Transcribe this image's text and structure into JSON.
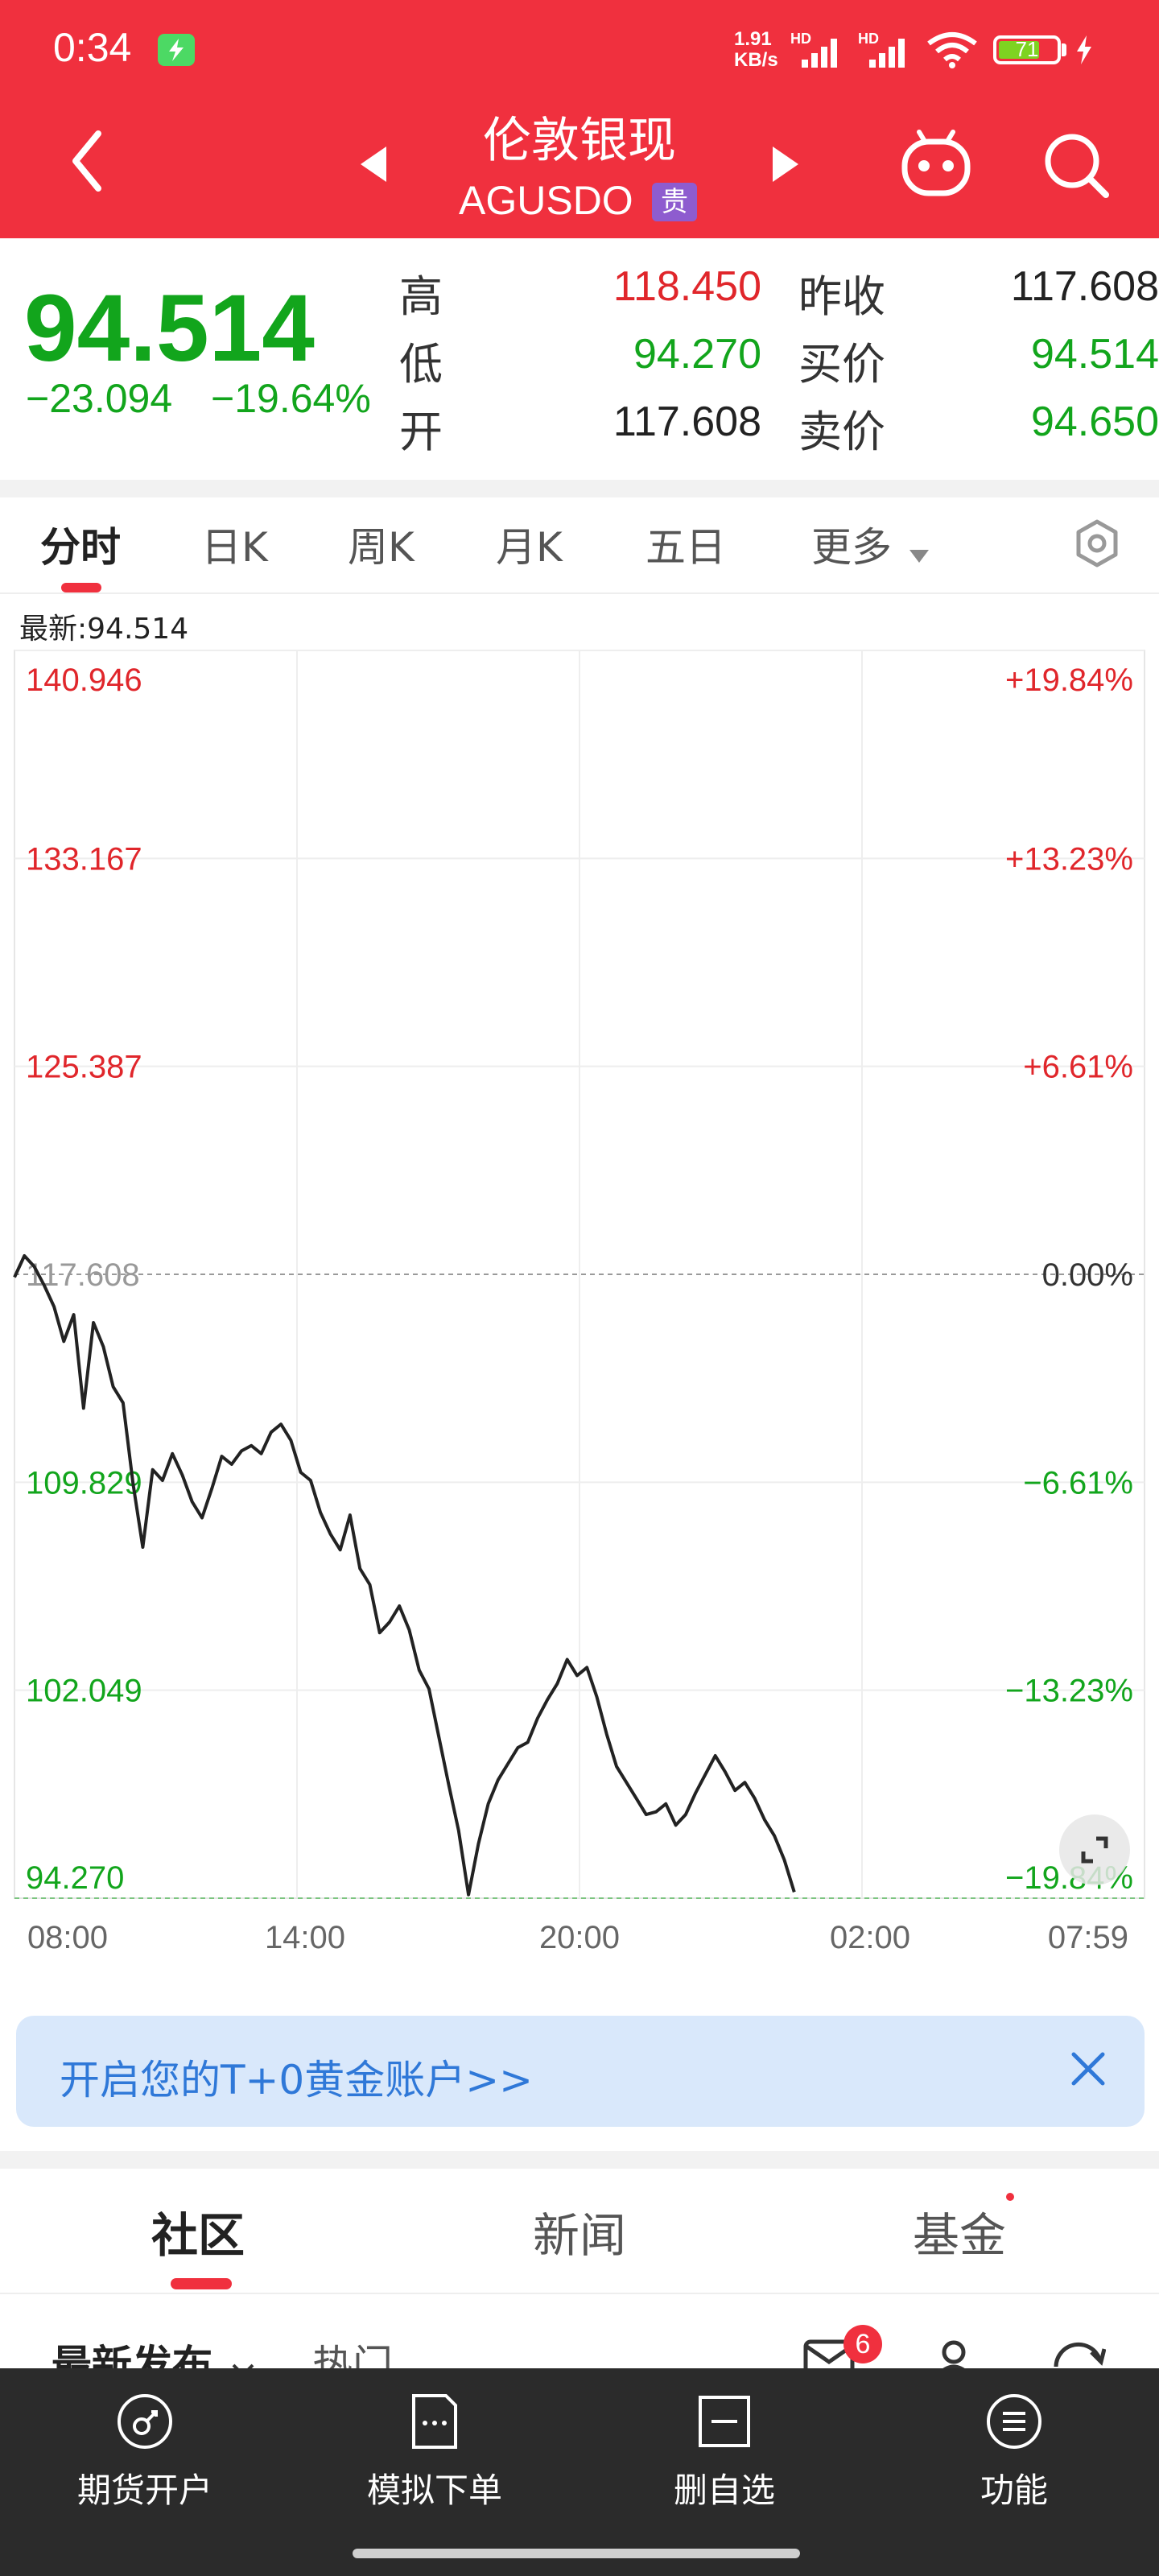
{
  "status_bar": {
    "time": "0:34",
    "net_speed_value": "1.91",
    "net_speed_unit": "KB/s",
    "hd1": "HD",
    "hd2": "HD",
    "battery": "71"
  },
  "header": {
    "title": "伦敦银现",
    "code": "AGUSDO",
    "tag": "贵"
  },
  "quote": {
    "price": "94.514",
    "change": "−23.094",
    "change_pct": "−19.64%",
    "high_label": "高",
    "high": "118.450",
    "low_label": "低",
    "low": "94.270",
    "open_label": "开",
    "open": "117.608",
    "prev_close_label": "昨收",
    "prev_close": "117.608",
    "bid_label": "买价",
    "bid": "94.514",
    "ask_label": "卖价",
    "ask": "94.650"
  },
  "tabs": [
    "分时",
    "日K",
    "周K",
    "月K",
    "五日",
    "更多"
  ],
  "latest_label": "最新:94.514",
  "chart_data": {
    "type": "line",
    "y_ticks": [
      "140.946",
      "133.167",
      "125.387",
      "117.608",
      "109.829",
      "102.049",
      "94.270"
    ],
    "y_pct_ticks": [
      "+19.84%",
      "+13.23%",
      "+6.61%",
      "0.00%",
      "−6.61%",
      "−13.23%",
      "−19.84%"
    ],
    "x_ticks": [
      "08:00",
      "14:00",
      "20:00",
      "02:00",
      "07:59"
    ],
    "ylim": [
      94.27,
      140.946
    ],
    "reference_value": 117.608,
    "colors": {
      "up": "#e0262b",
      "down": "#12a51c",
      "line": "#222222"
    },
    "series": [
      {
        "x": [
          0,
          1,
          2,
          3,
          4,
          5,
          6,
          7,
          8,
          9,
          10,
          11,
          12,
          13,
          14,
          15,
          16,
          17,
          18,
          19,
          20,
          21,
          22,
          23,
          24,
          25,
          26,
          27,
          28,
          29,
          30,
          31,
          32,
          33,
          34,
          35,
          36,
          37,
          38,
          39,
          40,
          41,
          42,
          43,
          44,
          45,
          46,
          47,
          48,
          49,
          50,
          51,
          52,
          53,
          54,
          55,
          56,
          57,
          58,
          59,
          60,
          61,
          62,
          63,
          64,
          65,
          66,
          67,
          68,
          69,
          70,
          71,
          72,
          73,
          74,
          75,
          76,
          77,
          78,
          79
        ],
        "values": [
          117.5,
          118.3,
          117.9,
          117.2,
          116.4,
          115.1,
          116.1,
          112.6,
          115.8,
          114.9,
          113.4,
          112.8,
          109.8,
          107.4,
          110.3,
          109.9,
          110.9,
          110.1,
          109.1,
          108.5,
          109.6,
          110.8,
          110.5,
          111.0,
          111.2,
          110.9,
          111.7,
          112.0,
          111.4,
          110.2,
          109.9,
          108.7,
          107.9,
          107.3,
          108.6,
          106.6,
          106.0,
          104.2,
          104.6,
          105.2,
          104.3,
          102.8,
          102.1,
          100.3,
          98.5,
          96.8,
          94.4,
          96.3,
          97.8,
          98.7,
          99.3,
          99.9,
          100.1,
          101.0,
          101.7,
          102.3,
          103.2,
          102.6,
          102.9,
          101.8,
          100.4,
          99.2,
          98.6,
          98.0,
          97.4,
          97.5,
          97.8,
          97.0,
          97.4,
          98.2,
          98.9,
          99.6,
          99.0,
          98.3,
          98.6,
          98.0,
          97.2,
          96.6,
          95.7,
          94.5
        ]
      }
    ]
  },
  "banner": {
    "text": "开启您的T+0黄金账户>>"
  },
  "community_tabs": [
    "社区",
    "新闻",
    "基金"
  ],
  "partial_row": {
    "latest": "最新发布",
    "hot": "热门",
    "msg_count": "6"
  },
  "bottom_nav": [
    "期货开户",
    "模拟下单",
    "删自选",
    "功能"
  ]
}
